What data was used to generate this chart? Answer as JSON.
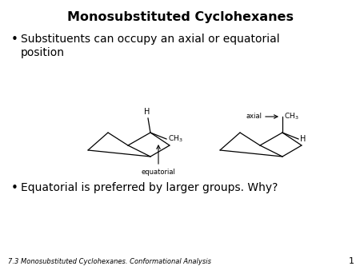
{
  "title": "Monosubstituted Cyclohexanes",
  "bullet1": "Substituents can occupy an axial or equatorial\nposition",
  "bullet2": "Equatorial is preferred by larger groups. Why?",
  "footer": "7.3 Monosubstituted Cyclohexanes. Conformational Analysis",
  "page_num": "1",
  "bg_color": "#ffffff",
  "text_color": "#000000",
  "title_fontsize": 11.5,
  "bullet_fontsize": 10,
  "footer_fontsize": 6,
  "mol_fontsize": 6.5
}
